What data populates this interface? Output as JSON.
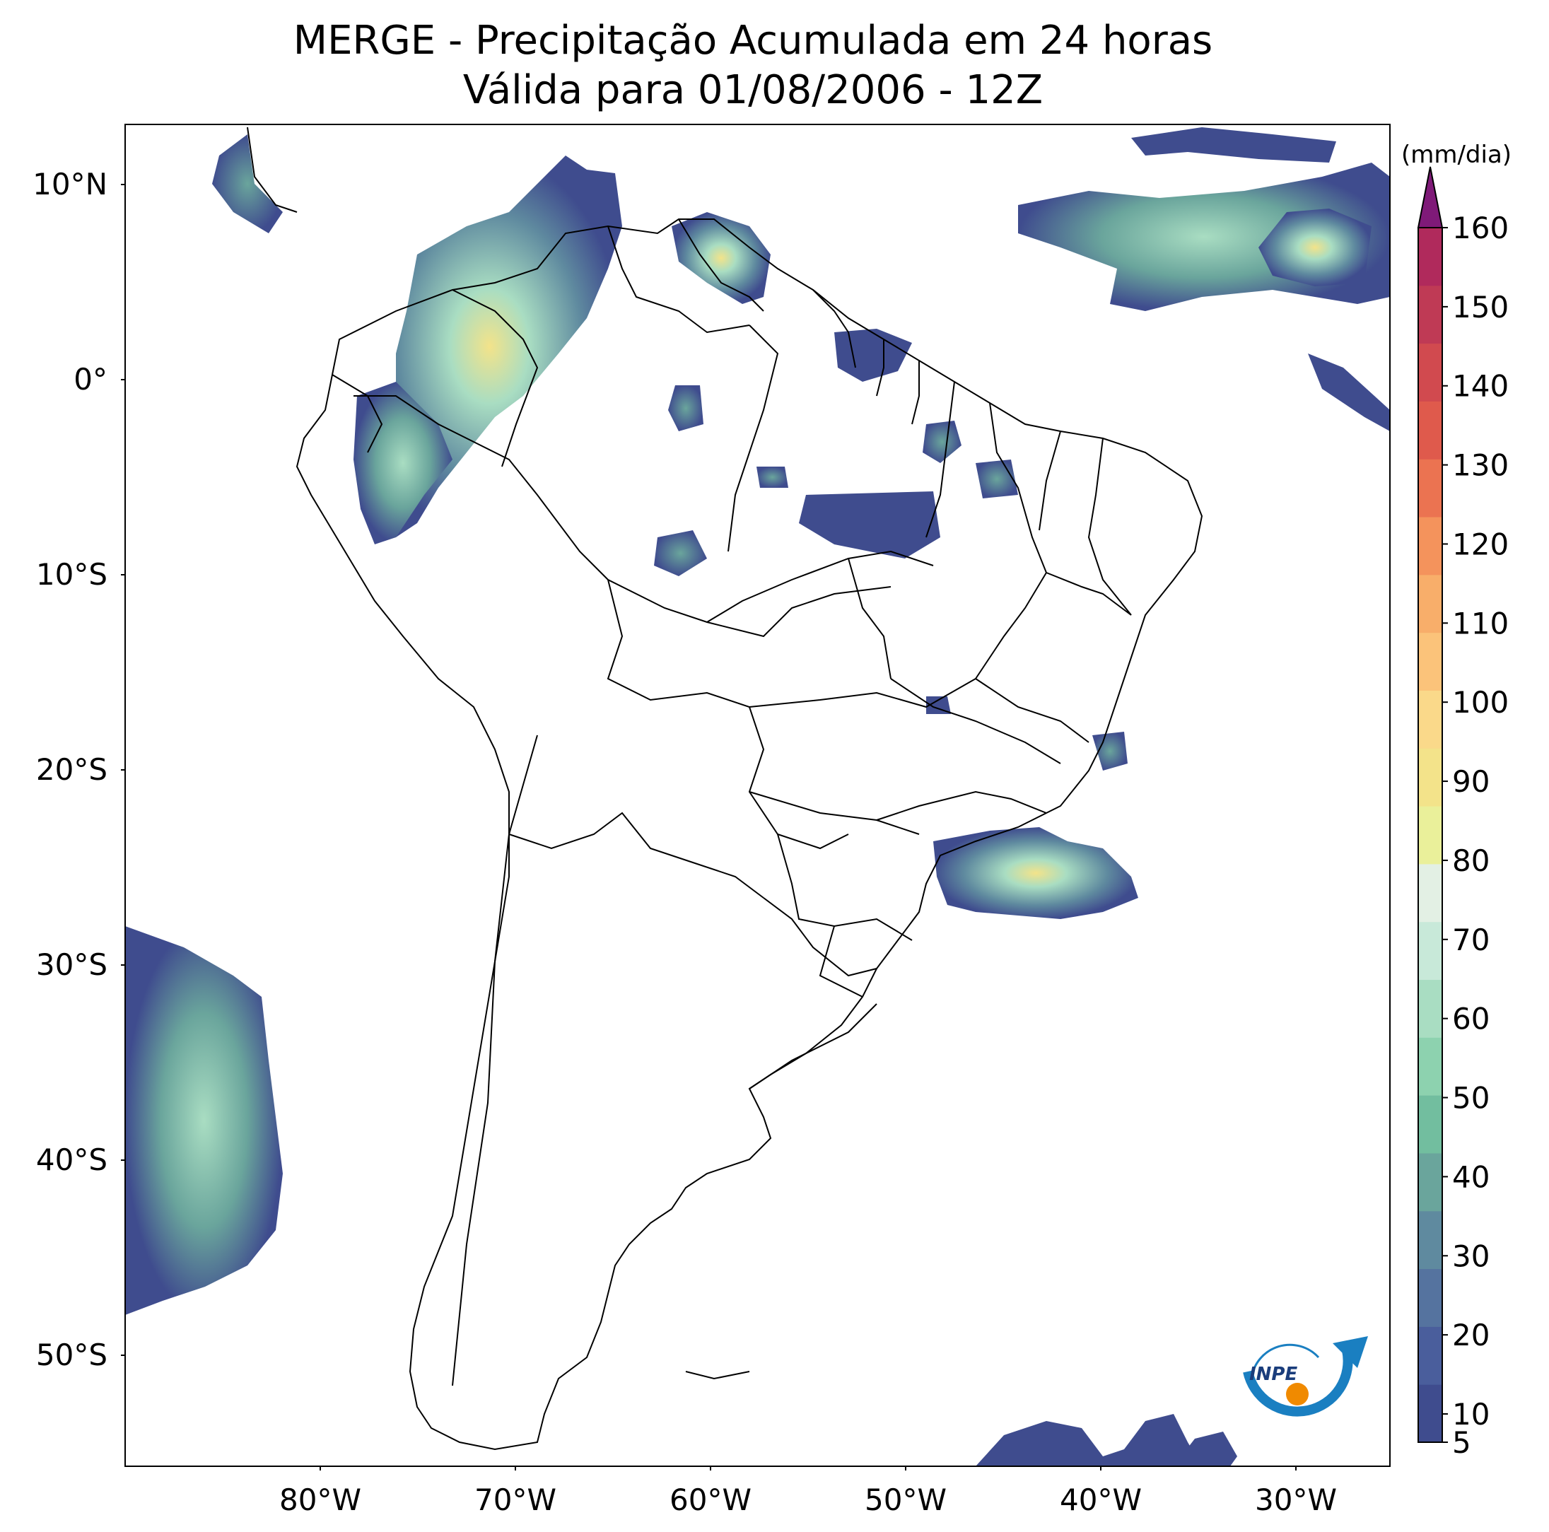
{
  "title": {
    "line1": "MERGE - Precipitação Acumulada em 24 horas",
    "line2": "Válida para 01/08/2006 - 12Z"
  },
  "map": {
    "lat_labels": [
      "10°N",
      "0°",
      "10°S",
      "20°S",
      "30°S",
      "40°S",
      "50°S"
    ],
    "lon_labels": [
      "80°W",
      "70°W",
      "60°W",
      "50°W",
      "40°W",
      "30°W"
    ]
  },
  "colorbar": {
    "unit": "(mm/dia)",
    "ticks": [
      "5",
      "10",
      "20",
      "30",
      "40",
      "50",
      "60",
      "70",
      "80",
      "90",
      "100",
      "110",
      "120",
      "130",
      "140",
      "150",
      "160"
    ],
    "colors": [
      "#3f4c8e",
      "#4a5e9c",
      "#55739f",
      "#5f8a9f",
      "#6aa59c",
      "#72be9f",
      "#8dd2af",
      "#a9ddc2",
      "#c8e9d9",
      "#e3f0e4",
      "#eaf09a",
      "#f3e38a",
      "#fad98a",
      "#fbc37a",
      "#f8ae6a",
      "#f4935c",
      "#eb7351",
      "#df5a4c",
      "#d14a4f",
      "#bf3a55",
      "#b02a5c"
    ],
    "extend_color": "#7f1a78"
  },
  "logo": {
    "text": "INPE"
  }
}
